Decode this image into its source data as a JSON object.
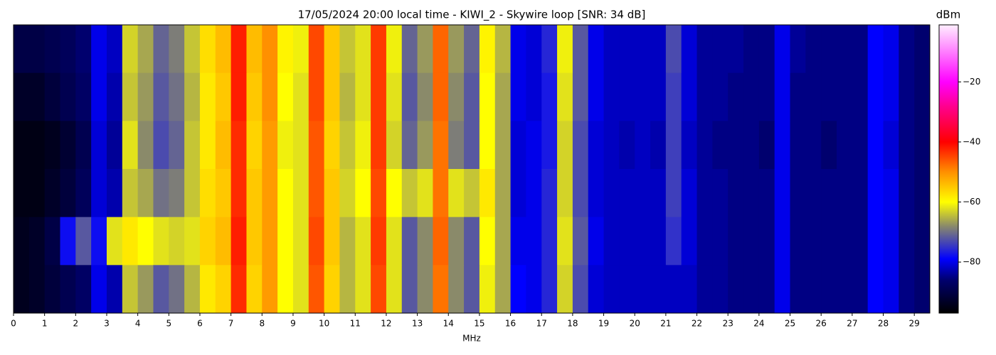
{
  "chart_data": {
    "type": "heatmap",
    "title": "17/05/2024 20:00 local time - KIWI_2 - Skywire loop [SNR: 34 dB]",
    "xlabel": "MHz",
    "colorbar_label": "dBm",
    "xlim": [
      0,
      29.5
    ],
    "xticks": [
      0,
      1,
      2,
      3,
      4,
      5,
      6,
      7,
      8,
      9,
      10,
      11,
      12,
      13,
      14,
      15,
      16,
      17,
      18,
      19,
      20,
      21,
      22,
      23,
      24,
      25,
      26,
      27,
      28,
      29
    ],
    "zlim": [
      -97,
      -1
    ],
    "zticks": [
      {
        "value": -20,
        "label": "−20"
      },
      {
        "value": -40,
        "label": "−40"
      },
      {
        "value": -60,
        "label": "−60"
      },
      {
        "value": -80,
        "label": "−80"
      }
    ],
    "colormap": [
      {
        "value": -97,
        "color": "#000000"
      },
      {
        "value": -86,
        "color": "#00006e"
      },
      {
        "value": -79,
        "color": "#0000ff"
      },
      {
        "value": -68,
        "color": "#8a8a6a"
      },
      {
        "value": -60,
        "color": "#ffff00"
      },
      {
        "value": -50,
        "color": "#ff9000"
      },
      {
        "value": -40,
        "color": "#ff0000"
      },
      {
        "value": -28,
        "color": "#ff0090"
      },
      {
        "value": -20,
        "color": "#ff00ff"
      },
      {
        "value": -1,
        "color": "#ffeeff"
      }
    ],
    "z": [
      [
        -90,
        -90,
        -89,
        -88,
        -86,
        -80,
        -82,
        -63,
        -66,
        -71,
        -69,
        -64,
        -57,
        -54,
        -42,
        -54,
        -50,
        -59,
        -61,
        -45,
        -55,
        -64,
        -62,
        -44,
        -61,
        -71,
        -67,
        -47,
        -67,
        -71,
        -59,
        -65,
        -80,
        -81,
        -76,
        -61,
        -72,
        -80,
        -82,
        -82,
        -82,
        -82,
        -73,
        -81,
        -84,
        -84,
        -84,
        -85,
        -85,
        -80,
        -84,
        -85,
        -85,
        -85,
        -85,
        -79,
        -80,
        -85,
        -86
      ],
      [
        -93,
        -93,
        -91,
        -89,
        -87,
        -80,
        -83,
        -64,
        -67,
        -72,
        -70,
        -65,
        -58,
        -55,
        -42,
        -55,
        -50,
        -60,
        -62,
        -45,
        -55,
        -65,
        -62,
        -44,
        -62,
        -72,
        -68,
        -47,
        -68,
        -72,
        -60,
        -66,
        -80,
        -81,
        -77,
        -62,
        -72,
        -80,
        -82,
        -82,
        -82,
        -82,
        -74,
        -81,
        -84,
        -84,
        -85,
        -85,
        -85,
        -80,
        -85,
        -85,
        -85,
        -85,
        -85,
        -79,
        -80,
        -85,
        -86
      ],
      [
        -95,
        -95,
        -94,
        -92,
        -89,
        -81,
        -84,
        -62,
        -68,
        -73,
        -71,
        -64,
        -58,
        -54,
        -43,
        -56,
        -51,
        -61,
        -62,
        -46,
        -56,
        -64,
        -61,
        -44,
        -63,
        -71,
        -67,
        -48,
        -69,
        -72,
        -60,
        -66,
        -81,
        -80,
        -77,
        -63,
        -73,
        -81,
        -82,
        -83,
        -82,
        -83,
        -74,
        -82,
        -84,
        -85,
        -85,
        -85,
        -86,
        -80,
        -85,
        -85,
        -86,
        -85,
        -85,
        -79,
        -81,
        -85,
        -86
      ],
      [
        -95,
        -95,
        -93,
        -91,
        -88,
        -81,
        -83,
        -64,
        -66,
        -70,
        -69,
        -64,
        -57,
        -55,
        -43,
        -55,
        -51,
        -60,
        -62,
        -46,
        -55,
        -63,
        -60,
        -45,
        -60,
        -64,
        -62,
        -48,
        -62,
        -64,
        -58,
        -66,
        -81,
        -80,
        -76,
        -63,
        -73,
        -81,
        -82,
        -82,
        -82,
        -82,
        -74,
        -81,
        -84,
        -84,
        -85,
        -85,
        -85,
        -80,
        -85,
        -85,
        -85,
        -85,
        -85,
        -79,
        -80,
        -85,
        -86
      ],
      [
        -94,
        -93,
        -90,
        -78,
        -72,
        -78,
        -62,
        -58,
        -60,
        -62,
        -63,
        -62,
        -56,
        -54,
        -42,
        -55,
        -51,
        -60,
        -62,
        -45,
        -55,
        -65,
        -62,
        -44,
        -62,
        -72,
        -68,
        -47,
        -68,
        -72,
        -60,
        -66,
        -80,
        -80,
        -76,
        -62,
        -72,
        -80,
        -82,
        -82,
        -82,
        -82,
        -75,
        -81,
        -84,
        -84,
        -85,
        -85,
        -85,
        -80,
        -85,
        -85,
        -85,
        -85,
        -85,
        -79,
        -80,
        -85,
        -86
      ],
      [
        -94,
        -93,
        -91,
        -89,
        -87,
        -80,
        -83,
        -64,
        -67,
        -72,
        -70,
        -65,
        -58,
        -56,
        -43,
        -56,
        -51,
        -60,
        -62,
        -46,
        -56,
        -65,
        -62,
        -45,
        -62,
        -72,
        -68,
        -48,
        -68,
        -72,
        -61,
        -66,
        -79,
        -80,
        -76,
        -63,
        -73,
        -81,
        -82,
        -82,
        -82,
        -82,
        -82,
        -82,
        -84,
        -84,
        -85,
        -85,
        -85,
        -80,
        -85,
        -85,
        -85,
        -85,
        -85,
        -79,
        -80,
        -85,
        -86
      ]
    ]
  }
}
